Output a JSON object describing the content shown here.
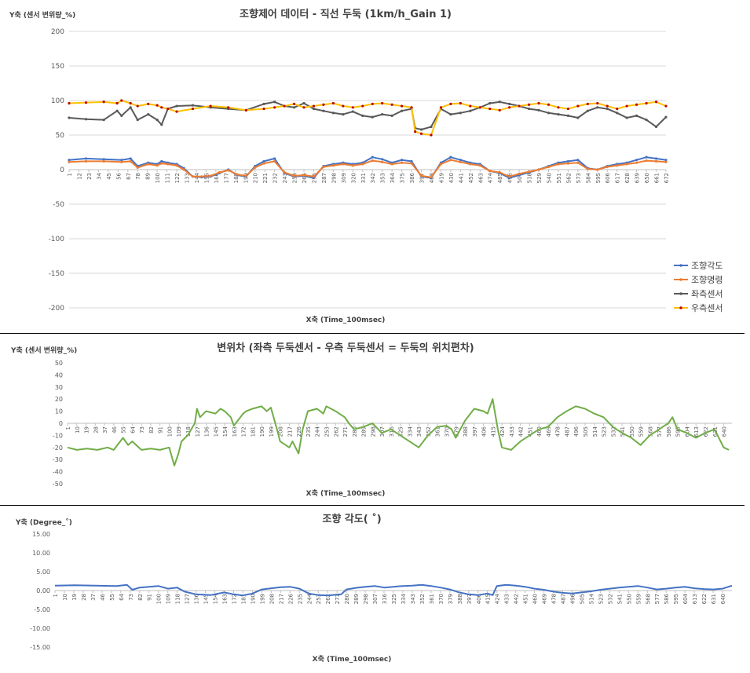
{
  "chart_data": [
    {
      "type": "line",
      "title": "조향제어 데이터 - 직선 두둑 (1km/h_Gain 1)",
      "ylabel": "Y축 (센서 변위량_%)",
      "xlabel": "X축 (Time_100msec)",
      "ylim": [
        -200,
        200
      ],
      "yticks": [
        200,
        150,
        100,
        50,
        0,
        -50,
        -100,
        -150,
        -200
      ],
      "xlim": [
        1,
        672
      ],
      "xticks": [
        1,
        12,
        23,
        34,
        45,
        56,
        67,
        78,
        89,
        100,
        111,
        122,
        133,
        144,
        155,
        166,
        177,
        188,
        199,
        210,
        221,
        232,
        243,
        254,
        265,
        276,
        287,
        298,
        309,
        320,
        331,
        342,
        353,
        364,
        375,
        386,
        397,
        408,
        419,
        430,
        441,
        452,
        463,
        474,
        485,
        496,
        507,
        518,
        529,
        540,
        551,
        562,
        573,
        584,
        595,
        606,
        617,
        628,
        639,
        650,
        661,
        672
      ],
      "grid": true,
      "legend_position": "bottom-right",
      "series": [
        {
          "name": "조향각도",
          "color": "#4472C4",
          "x": [
            1,
            20,
            40,
            60,
            70,
            78,
            90,
            100,
            105,
            112,
            122,
            130,
            140,
            150,
            160,
            170,
            180,
            190,
            200,
            210,
            220,
            232,
            243,
            254,
            265,
            276,
            287,
            298,
            309,
            320,
            331,
            342,
            353,
            364,
            375,
            386,
            397,
            408,
            419,
            430,
            441,
            452,
            463,
            474,
            485,
            496,
            507,
            518,
            529,
            540,
            551,
            562,
            573,
            584,
            595,
            606,
            617,
            628,
            639,
            650,
            661,
            672
          ],
          "values": [
            14,
            16,
            15,
            14,
            16,
            5,
            10,
            8,
            12,
            10,
            8,
            2,
            -10,
            -11,
            -10,
            -5,
            0,
            -8,
            -10,
            5,
            12,
            16,
            -5,
            -10,
            -9,
            -12,
            5,
            8,
            10,
            8,
            10,
            18,
            15,
            10,
            14,
            12,
            -10,
            -12,
            10,
            18,
            14,
            10,
            8,
            -2,
            -5,
            -12,
            -8,
            -4,
            0,
            5,
            10,
            12,
            14,
            2,
            0,
            5,
            8,
            10,
            14,
            18,
            16,
            14
          ]
        },
        {
          "name": "조향명령",
          "color": "#ED7D31",
          "x": [
            1,
            20,
            40,
            60,
            70,
            78,
            90,
            100,
            105,
            112,
            122,
            130,
            140,
            150,
            160,
            170,
            180,
            190,
            200,
            210,
            220,
            232,
            243,
            254,
            265,
            276,
            287,
            298,
            309,
            320,
            331,
            342,
            353,
            364,
            375,
            386,
            397,
            408,
            419,
            430,
            441,
            452,
            463,
            474,
            485,
            496,
            507,
            518,
            529,
            540,
            551,
            562,
            573,
            584,
            595,
            606,
            617,
            628,
            639,
            650,
            661,
            672
          ],
          "values": [
            11,
            12,
            12,
            11,
            12,
            3,
            8,
            6,
            9,
            8,
            6,
            0,
            -10,
            -10,
            -9,
            -4,
            -1,
            -7,
            -9,
            3,
            9,
            12,
            -4,
            -9,
            -8,
            -10,
            4,
            6,
            8,
            6,
            8,
            13,
            11,
            8,
            10,
            9,
            -9,
            -11,
            8,
            14,
            11,
            8,
            6,
            -2,
            -4,
            -10,
            -6,
            -3,
            0,
            4,
            8,
            9,
            10,
            1,
            0,
            4,
            6,
            8,
            10,
            13,
            12,
            11
          ]
        },
        {
          "name": "좌측센서",
          "color": "#595959",
          "x": [
            1,
            20,
            40,
            55,
            60,
            70,
            78,
            90,
            100,
            105,
            112,
            122,
            140,
            160,
            180,
            200,
            220,
            232,
            243,
            254,
            265,
            276,
            287,
            298,
            309,
            320,
            331,
            342,
            353,
            364,
            375,
            386,
            390,
            397,
            408,
            419,
            430,
            441,
            452,
            463,
            474,
            485,
            496,
            507,
            518,
            529,
            540,
            551,
            562,
            573,
            584,
            595,
            606,
            617,
            628,
            639,
            650,
            661,
            672
          ],
          "values": [
            75,
            73,
            72,
            85,
            78,
            90,
            72,
            80,
            72,
            65,
            88,
            92,
            93,
            90,
            88,
            86,
            95,
            98,
            92,
            90,
            96,
            88,
            85,
            82,
            80,
            84,
            78,
            76,
            80,
            78,
            85,
            88,
            60,
            58,
            62,
            88,
            80,
            82,
            85,
            90,
            96,
            98,
            95,
            92,
            88,
            86,
            82,
            80,
            78,
            75,
            85,
            90,
            88,
            82,
            75,
            78,
            72,
            62,
            76
          ]
        },
        {
          "name": "우측센서",
          "color": "#FFC000",
          "x": [
            1,
            20,
            40,
            55,
            60,
            70,
            78,
            90,
            100,
            105,
            112,
            122,
            140,
            160,
            180,
            200,
            220,
            232,
            243,
            254,
            265,
            276,
            287,
            298,
            309,
            320,
            331,
            342,
            353,
            364,
            375,
            386,
            390,
            397,
            408,
            419,
            430,
            441,
            452,
            463,
            474,
            485,
            496,
            507,
            518,
            529,
            540,
            551,
            562,
            573,
            584,
            595,
            606,
            617,
            628,
            639,
            650,
            661,
            672
          ],
          "values": [
            96,
            97,
            98,
            96,
            100,
            96,
            92,
            95,
            93,
            90,
            88,
            84,
            88,
            92,
            90,
            86,
            88,
            90,
            92,
            95,
            90,
            92,
            94,
            96,
            92,
            90,
            92,
            95,
            96,
            94,
            92,
            90,
            55,
            52,
            50,
            90,
            95,
            96,
            92,
            90,
            88,
            86,
            90,
            92,
            94,
            96,
            94,
            90,
            88,
            92,
            95,
            96,
            92,
            88,
            92,
            94,
            96,
            98,
            92
          ]
        }
      ]
    },
    {
      "type": "line",
      "title": "변위차 (좌측 두둑센서 - 우측 두둑센서 = 두둑의 위치편차)",
      "ylabel": "Y축 (센서 변위량_%)",
      "xlabel": "X축 (Time_100msec)",
      "ylim": [
        -50,
        50
      ],
      "yticks": [
        50,
        40,
        30,
        20,
        10,
        0,
        -10,
        -20,
        -30,
        -40,
        -50
      ],
      "xlim": [
        1,
        648
      ],
      "xticks": [
        1,
        10,
        19,
        28,
        37,
        46,
        55,
        64,
        73,
        82,
        91,
        100,
        109,
        118,
        127,
        136,
        145,
        154,
        163,
        172,
        181,
        190,
        199,
        208,
        217,
        226,
        235,
        244,
        253,
        262,
        271,
        280,
        289,
        298,
        307,
        316,
        325,
        334,
        343,
        352,
        361,
        370,
        379,
        388,
        397,
        406,
        415,
        424,
        433,
        442,
        451,
        460,
        469,
        478,
        487,
        496,
        505,
        514,
        523,
        532,
        541,
        550,
        559,
        568,
        577,
        586,
        595,
        604,
        613,
        622,
        631,
        640
      ],
      "grid": false,
      "series": [
        {
          "name": "",
          "color": "#70AD47",
          "x": [
            1,
            10,
            20,
            30,
            40,
            46,
            55,
            60,
            64,
            73,
            82,
            91,
            100,
            105,
            109,
            112,
            118,
            125,
            127,
            130,
            136,
            145,
            150,
            154,
            160,
            163,
            172,
            175,
            181,
            190,
            195,
            199,
            205,
            208,
            217,
            220,
            226,
            230,
            235,
            244,
            250,
            253,
            262,
            271,
            275,
            280,
            289,
            298,
            307,
            316,
            325,
            334,
            343,
            352,
            361,
            370,
            375,
            379,
            388,
            397,
            406,
            410,
            415,
            420,
            424,
            433,
            442,
            451,
            460,
            469,
            478,
            487,
            496,
            505,
            514,
            523,
            532,
            541,
            550,
            559,
            568,
            577,
            586,
            590,
            595,
            604,
            613,
            622,
            631,
            640,
            645
          ],
          "values": [
            -20,
            -22,
            -21,
            -22,
            -20,
            -22,
            -12,
            -18,
            -15,
            -22,
            -21,
            -22,
            -20,
            -35,
            -25,
            -15,
            -10,
            0,
            12,
            5,
            10,
            8,
            12,
            10,
            5,
            -2,
            8,
            10,
            12,
            14,
            10,
            13,
            -5,
            -15,
            -20,
            -15,
            -25,
            -5,
            10,
            12,
            8,
            14,
            10,
            5,
            0,
            -5,
            -3,
            0,
            -8,
            -5,
            -10,
            -15,
            -20,
            -10,
            -3,
            -2,
            -5,
            -12,
            2,
            12,
            10,
            8,
            20,
            -5,
            -20,
            -22,
            -15,
            -10,
            -5,
            -3,
            5,
            10,
            14,
            12,
            8,
            5,
            -3,
            -8,
            -12,
            -18,
            -10,
            -5,
            0,
            5,
            -5,
            -8,
            -12,
            -8,
            -5,
            -20,
            -22
          ]
        }
      ]
    },
    {
      "type": "line",
      "title": "조향 각도( ˚)",
      "ylabel": "Y축 (Degree_˚)",
      "xlabel": "X축 (Time_100msec)",
      "ylim": [
        -15,
        15
      ],
      "yticks": [
        "15.00",
        "10.00",
        "5.00",
        "0.00",
        "-5.00",
        "-10.00",
        "-15.00"
      ],
      "xlim": [
        1,
        649
      ],
      "xticks": [
        1,
        10,
        19,
        28,
        37,
        46,
        55,
        64,
        73,
        82,
        91,
        100,
        109,
        118,
        127,
        136,
        145,
        154,
        163,
        172,
        181,
        190,
        199,
        208,
        217,
        226,
        235,
        244,
        253,
        262,
        271,
        280,
        289,
        298,
        307,
        316,
        325,
        334,
        343,
        352,
        361,
        370,
        379,
        388,
        397,
        406,
        415,
        424,
        433,
        442,
        451,
        460,
        469,
        478,
        487,
        496,
        505,
        514,
        523,
        532,
        541,
        550,
        559,
        568,
        577,
        586,
        595,
        604,
        613,
        622,
        631,
        640
      ],
      "grid": false,
      "series": [
        {
          "name": "",
          "color": "#4472C4",
          "x": [
            1,
            20,
            40,
            60,
            70,
            75,
            82,
            100,
            109,
            118,
            125,
            136,
            150,
            163,
            172,
            181,
            190,
            199,
            208,
            217,
            226,
            235,
            244,
            253,
            262,
            275,
            280,
            289,
            298,
            307,
            316,
            325,
            334,
            343,
            352,
            361,
            370,
            379,
            388,
            397,
            406,
            415,
            420,
            424,
            433,
            442,
            451,
            460,
            469,
            478,
            487,
            496,
            505,
            514,
            523,
            532,
            541,
            550,
            559,
            568,
            577,
            586,
            595,
            604,
            613,
            622,
            631,
            640,
            649
          ],
          "values": [
            1.3,
            1.4,
            1.3,
            1.2,
            1.5,
            0.2,
            0.8,
            1.2,
            0.5,
            0.8,
            -0.3,
            -1.0,
            -1.2,
            -0.5,
            -1.0,
            -1.3,
            -0.8,
            0.3,
            0.6,
            0.9,
            1.0,
            0.5,
            -0.8,
            -1.2,
            -1.3,
            -1.0,
            0.3,
            0.7,
            1.0,
            1.2,
            0.8,
            1.0,
            1.2,
            1.3,
            1.5,
            1.2,
            0.8,
            0.3,
            -0.5,
            -1.0,
            -1.2,
            -0.8,
            -1.2,
            1.2,
            1.5,
            1.3,
            1.0,
            0.5,
            0.2,
            -0.3,
            -0.6,
            -0.8,
            -0.5,
            -0.2,
            0.2,
            0.5,
            0.8,
            1.0,
            1.2,
            0.8,
            0.3,
            0.5,
            0.8,
            1.0,
            0.6,
            0.4,
            0.3,
            0.5,
            1.3
          ]
        }
      ]
    }
  ]
}
